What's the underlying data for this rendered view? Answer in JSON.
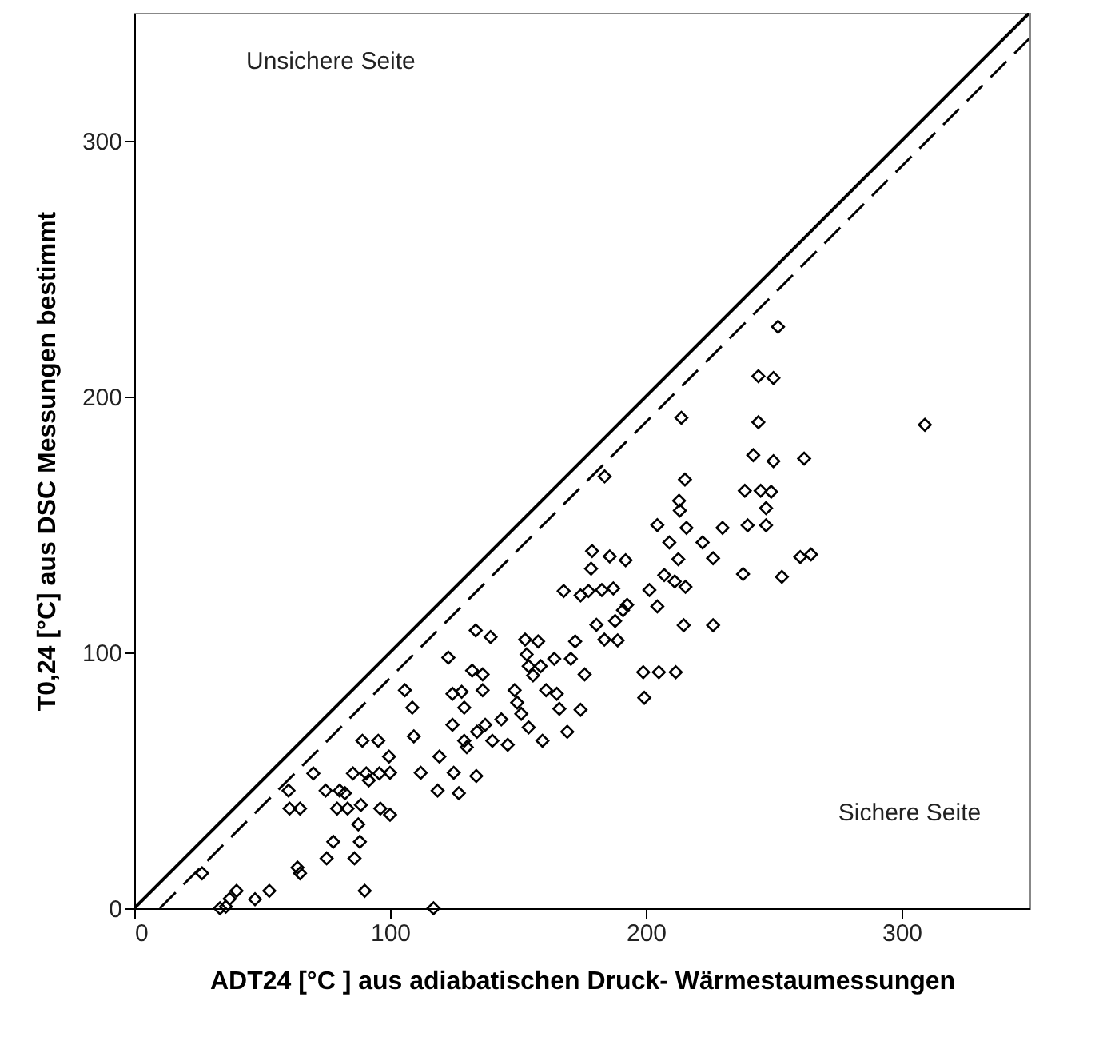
{
  "chart_data": {
    "type": "scatter",
    "xlabel": "ADT24 [°C ] aus adiabatischen Druck- Wärmestaumessungen",
    "ylabel": "T0,24 [°C] aus DSC Messungen bestimmt",
    "annotations": [
      "Unsichere Seite",
      "Sichere Seite"
    ],
    "xlim": [
      0,
      350
    ],
    "ylim": [
      0,
      350
    ],
    "xticks": [
      0,
      100,
      200,
      300
    ],
    "yticks": [
      0,
      100,
      200,
      300
    ],
    "grid": false,
    "series": [
      {
        "type": "line",
        "color": "#000000",
        "line_style": "solid",
        "marker": "none",
        "x": [
          0,
          350
        ],
        "values": [
          0,
          350
        ]
      },
      {
        "type": "line",
        "color": "#000000",
        "line_style": "dashed",
        "marker": "none",
        "x": [
          10,
          350
        ],
        "values": [
          0,
          340
        ]
      },
      {
        "color": "#000000",
        "marker": "diamond",
        "x": [
          26.5,
          33.5,
          35.8,
          37.3,
          40,
          47.2,
          52.8,
          63.8,
          64.8,
          60.3,
          60.7,
          64.8,
          70,
          74.8,
          75.2,
          77.8,
          80.3,
          79.3,
          82.4,
          83.4,
          86.1,
          87.6,
          88.2,
          88.6,
          85.5,
          89.2,
          90.7,
          90.1,
          91.7,
          95.4,
          96.2,
          95.8,
          99.6,
          100,
          100,
          105.8,
          108.7,
          109.3,
          112,
          117,
          118.6,
          119.3,
          122.8,
          124.9,
          124.4,
          124.4,
          126.9,
          128,
          129,
          129,
          130,
          132.1,
          133.5,
          133.7,
          134,
          136.2,
          136.2,
          137.2,
          139.3,
          140,
          143.5,
          146,
          148.7,
          149.7,
          151.3,
          152.8,
          153.4,
          154.2,
          154.2,
          155.9,
          157.9,
          158.9,
          159.6,
          161,
          164.2,
          165.2,
          166.2,
          167.9,
          169.3,
          170.7,
          172.4,
          174.5,
          174.5,
          176.1,
          177.6,
          178.6,
          179,
          180.7,
          182.8,
          183.8,
          185.9,
          187.3,
          188,
          189,
          191.1,
          192.1,
          192.7,
          199,
          199.4,
          201.4,
          204.5,
          204.5,
          205.1,
          207.2,
          209.2,
          211.3,
          211.7,
          212.7,
          213.3,
          214.8,
          215.9,
          215.5,
          222.2,
          226.3,
          226.3,
          230,
          213.9,
          183.9,
          215.3,
          213,
          251.7,
          244,
          249.9,
          244,
          309.1,
          242,
          249.9,
          261.9,
          238.7,
          244.9,
          249,
          247,
          239.8,
          247,
          260.4,
          264.6,
          238,
          253.2
        ],
        "values": [
          13.7,
          0,
          0.6,
          3.7,
          6.8,
          3.5,
          6.8,
          15.9,
          13.7,
          46,
          39,
          39,
          52.7,
          46,
          19.5,
          26,
          46,
          39,
          45,
          39,
          19.5,
          32.8,
          26,
          40.4,
          52.7,
          65.5,
          52.7,
          6.8,
          50,
          65.5,
          39,
          52.7,
          59.3,
          53,
          36.6,
          85.2,
          78.4,
          67.2,
          53,
          0,
          46,
          59.3,
          98,
          53,
          71.7,
          83.8,
          45,
          84.6,
          78.4,
          65.5,
          63,
          92.9,
          108.6,
          51.7,
          69,
          85.2,
          91.4,
          71.7,
          106,
          65.5,
          73.8,
          63.9,
          85.2,
          80.4,
          76,
          105,
          99.2,
          94.6,
          70.7,
          91,
          104.3,
          94.6,
          65.5,
          85.2,
          97.5,
          83.8,
          78,
          124,
          69,
          97.5,
          104.3,
          77.6,
          122.3,
          91.4,
          124,
          132.7,
          139.6,
          110.8,
          124.4,
          105,
          137.5,
          125,
          112.3,
          104.7,
          116.5,
          136,
          118.6,
          92.3,
          82.3,
          124.4,
          118,
          149.8,
          92.3,
          130.2,
          143,
          127.7,
          92.3,
          136.4,
          155.5,
          110.6,
          148.7,
          125.6,
          143,
          136.8,
          110.6,
          148.7,
          191.7,
          168.8,
          167.6,
          159.3,
          227.3,
          208,
          207.3,
          190,
          189,
          177.1,
          174.8,
          175.8,
          163.2,
          163.2,
          162.8,
          156.4,
          149.7,
          149.7,
          137.3,
          138.3,
          130.6,
          129.5
        ]
      }
    ]
  }
}
